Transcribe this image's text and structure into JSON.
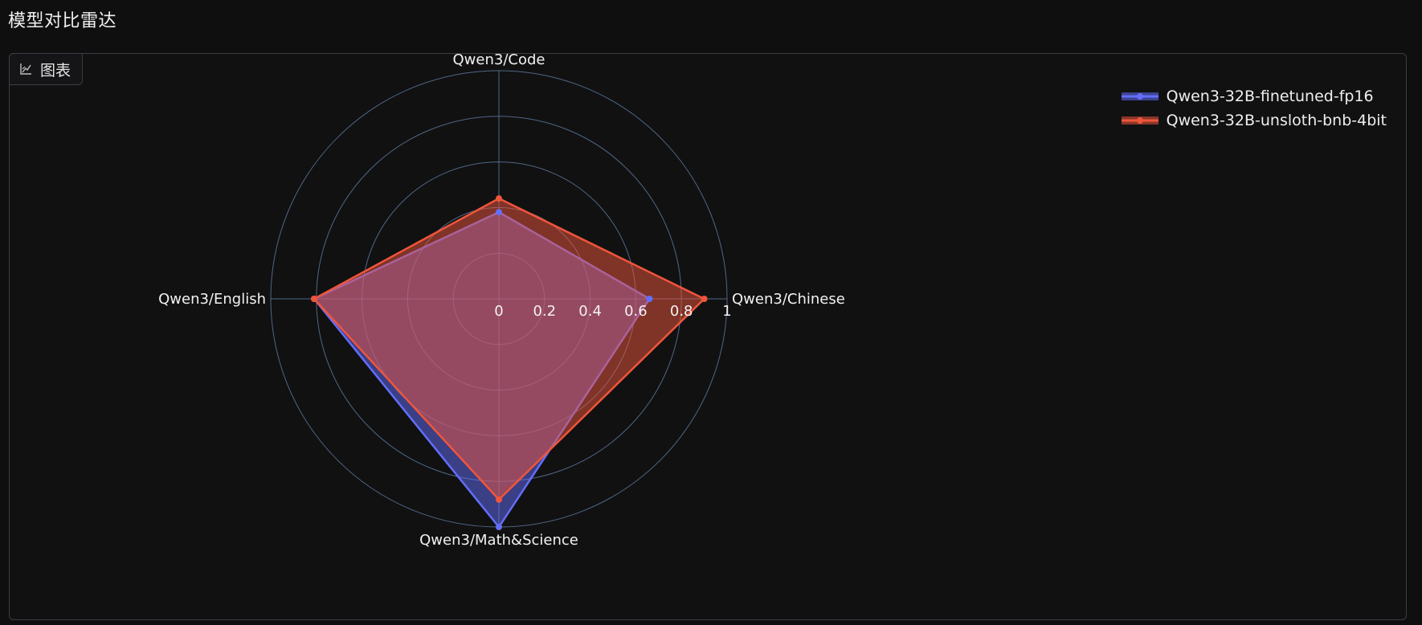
{
  "page": {
    "title": "模型对比雷达"
  },
  "panel": {
    "tab_label": "图表",
    "tab_icon": "chart-icon"
  },
  "chart_data": {
    "type": "radar",
    "axes": [
      "Qwen3/Code",
      "Qwen3/Chinese",
      "Qwen3/Math&Science",
      "Qwen3/English"
    ],
    "radial_range": [
      0,
      1
    ],
    "radial_ticks": [
      "0",
      "0.2",
      "0.4",
      "0.6",
      "0.8",
      "1"
    ],
    "grid": true,
    "legend_position": "top-right",
    "series": [
      {
        "name": "Qwen3-32B-finetuned-fp16",
        "color": "#636efa",
        "values": [
          0.38,
          0.66,
          1.0,
          0.81
        ]
      },
      {
        "name": "Qwen3-32B-unsloth-bnb-4bit",
        "color": "#ef553b",
        "values": [
          0.44,
          0.9,
          0.88,
          0.81
        ]
      }
    ]
  }
}
